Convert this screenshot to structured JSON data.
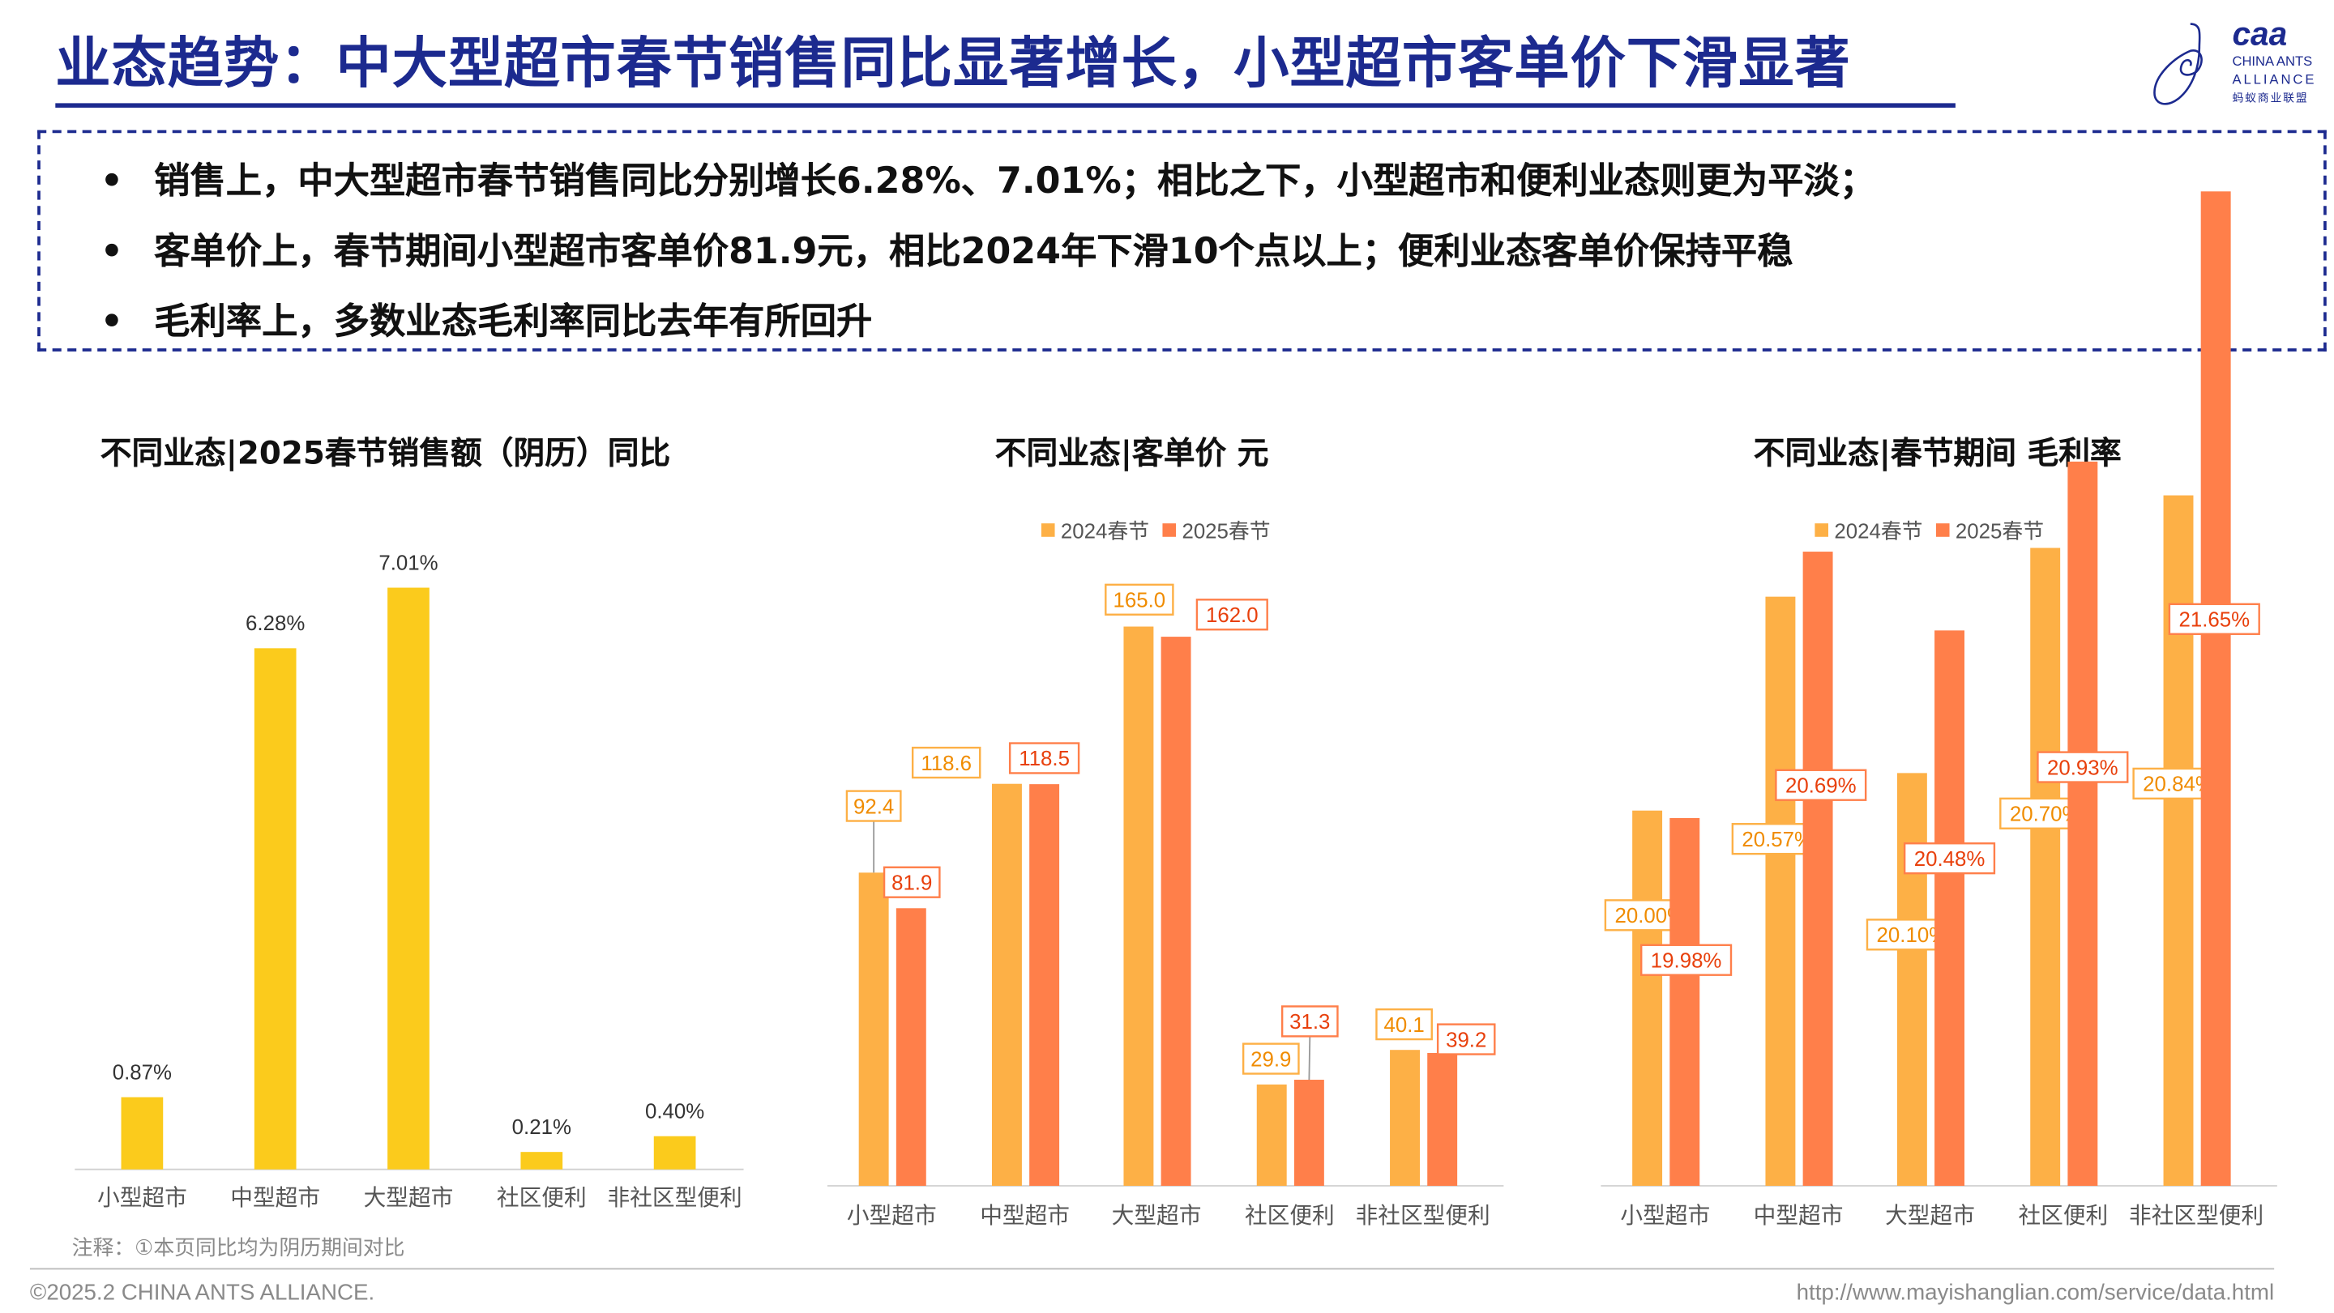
{
  "header": {
    "title": "业态趋势：中大型超市春节销售同比显著增长，小型超市客单价下滑显著",
    "logo": {
      "mark": "caa",
      "line1": "CHINA ANTS",
      "line2": "ALLIANCE",
      "line3": "蚂蚁商业联盟"
    }
  },
  "summary": {
    "bullet_symbol": "•",
    "items": [
      "销售上，中大型超市春节销售同比分别增长6.28%、7.01%；相比之下，小型超市和便利业态则更为平淡；",
      "客单价上，春节期间小型超市客单价81.9元，相比2024年下滑10个点以上；便利业态客单价保持平稳",
      "毛利率上，多数业态毛利率同比去年有所回升"
    ]
  },
  "colors": {
    "brand": "#1c2a8f",
    "yoy_bar": "#FBCB1C",
    "s2024": "#FDB046",
    "s2025": "#FF7F4A",
    "label2024": "#F08C00",
    "label2025": "#E8400C"
  },
  "chart_data": [
    {
      "type": "bar",
      "title": "不同业态|2025春节销售额（阴历）同比",
      "categories": [
        "小型超市",
        "中型超市",
        "大型超市",
        "社区便利",
        "非社区型便利"
      ],
      "values": [
        0.87,
        6.28,
        7.01,
        0.21,
        0.4
      ],
      "value_labels": [
        "0.87%",
        "6.28%",
        "7.01%",
        "0.21%",
        "0.40%"
      ],
      "unit": "%",
      "ylim": [
        0,
        8
      ],
      "grid": false,
      "legend": "none"
    },
    {
      "type": "bar",
      "title": "不同业态|客单价 元",
      "categories": [
        "小型超市",
        "中型超市",
        "大型超市",
        "社区便利",
        "非社区型便利"
      ],
      "series": [
        {
          "name": "2024春节",
          "values": [
            92.4,
            118.6,
            165.0,
            29.9,
            40.1
          ],
          "labels": [
            "92.4",
            "118.6",
            "165.0",
            "29.9",
            "40.1"
          ]
        },
        {
          "name": "2025春节",
          "values": [
            81.9,
            118.5,
            162.0,
            31.3,
            39.2
          ],
          "labels": [
            "81.9",
            "118.5",
            "162.0",
            "31.3",
            "39.2"
          ]
        }
      ],
      "ylim": [
        0,
        180
      ],
      "grid": false,
      "legend": "top"
    },
    {
      "type": "bar",
      "title": "不同业态|春节期间 毛利率",
      "categories": [
        "小型超市",
        "中型超市",
        "大型超市",
        "社区便利",
        "非社区型便利"
      ],
      "series": [
        {
          "name": "2024春节",
          "values": [
            20.0,
            20.57,
            20.1,
            20.7,
            20.84
          ],
          "labels": [
            "20.00%",
            "20.57%",
            "20.10%",
            "20.70%",
            "20.84%"
          ]
        },
        {
          "name": "2025春节",
          "values": [
            19.98,
            20.69,
            20.48,
            20.93,
            21.65
          ],
          "labels": [
            "19.98%",
            "20.69%",
            "20.48%",
            "20.93%",
            "21.65%"
          ]
        }
      ],
      "ylim": [
        19.0,
        22.0
      ],
      "grid": false,
      "legend": "top"
    }
  ],
  "note": "注释：①本页同比均为阴历期间对比",
  "footer": {
    "copyright": "©2025.2 CHINA ANTS ALLIANCE.",
    "url": "http://www.mayishanglian.com/service/data.html"
  }
}
